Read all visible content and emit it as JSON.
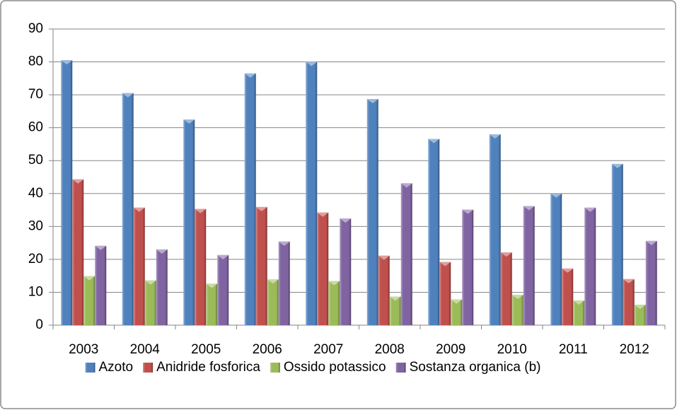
{
  "chart_data": {
    "type": "bar",
    "categories": [
      "2003",
      "2004",
      "2005",
      "2006",
      "2007",
      "2008",
      "2009",
      "2010",
      "2011",
      "2012"
    ],
    "series": [
      {
        "name": "Azoto",
        "color": "#4f81bd",
        "values": [
          80.5,
          70.5,
          62.5,
          76.5,
          80,
          68.7,
          56.6,
          58,
          40,
          49
        ]
      },
      {
        "name": "Anidride fosforica",
        "color": "#c0504d",
        "values": [
          44.3,
          35.7,
          35.3,
          35.9,
          34.2,
          21.1,
          19.2,
          22.1,
          17.2,
          14
        ]
      },
      {
        "name": "Ossido potassico",
        "color": "#9bbb59",
        "values": [
          14.9,
          13.6,
          12.6,
          13.9,
          13.4,
          8.7,
          7.8,
          9.2,
          7.5,
          6.2
        ]
      },
      {
        "name": "Sostanza organica (b)",
        "color": "#8064a2",
        "values": [
          24.1,
          23,
          21.3,
          25.4,
          32.4,
          43.1,
          35.1,
          36.2,
          35.7,
          25.6
        ]
      }
    ],
    "ylim": [
      0,
      90
    ],
    "yticks": [
      0,
      10,
      20,
      30,
      40,
      50,
      60,
      70,
      80,
      90
    ],
    "grid": true,
    "legend": "bottom"
  }
}
